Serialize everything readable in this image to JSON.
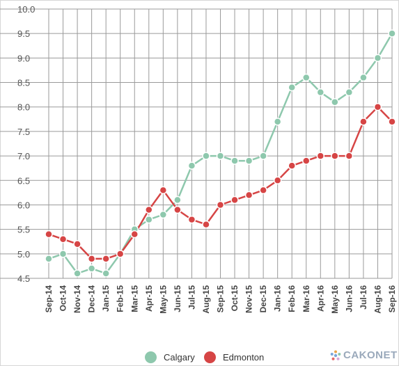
{
  "chart_data": {
    "type": "line",
    "categories": [
      "Sep-14",
      "Oct-14",
      "Nov-14",
      "Dec-14",
      "Jan-15",
      "Feb-15",
      "Mar-15",
      "Apr-15",
      "May-15",
      "Jun-15",
      "Jul-15",
      "Aug-15",
      "Sep-15",
      "Oct-15",
      "Nov-15",
      "Dec-15",
      "Jan-16",
      "Feb-16",
      "Mar-16",
      "Apr-16",
      "May-16",
      "Jun-16",
      "Jul-16",
      "Aug-16",
      "Sep-16"
    ],
    "series": [
      {
        "name": "Calgary",
        "color": "#8ec8ad",
        "values": [
          4.9,
          5.0,
          4.6,
          4.7,
          4.6,
          5.0,
          5.5,
          5.7,
          5.8,
          6.1,
          6.8,
          7.0,
          7.0,
          6.9,
          6.9,
          7.0,
          7.7,
          8.4,
          8.6,
          8.3,
          8.1,
          8.3,
          8.6,
          9.0,
          9.5
        ]
      },
      {
        "name": "Edmonton",
        "color": "#d64545",
        "values": [
          5.4,
          5.3,
          5.2,
          4.9,
          4.9,
          5.0,
          5.4,
          5.9,
          6.3,
          5.9,
          5.7,
          5.6,
          6.0,
          6.1,
          6.2,
          6.3,
          6.5,
          6.8,
          6.9,
          7.0,
          7.0,
          7.0,
          7.7,
          8.0,
          7.7
        ]
      }
    ],
    "y_ticks": [
      "4.5",
      "5.0",
      "5.5",
      "6.0",
      "6.5",
      "7.0",
      "7.5",
      "8.0",
      "8.5",
      "9.0",
      "9.5",
      "10.0"
    ],
    "ylim": [
      4.5,
      10.0
    ],
    "grid": true,
    "legend_position": "bottom"
  },
  "legend": {
    "calgary": "Calgary",
    "edmonton": "Edmonton"
  },
  "watermark": {
    "text": "CAKONET"
  }
}
